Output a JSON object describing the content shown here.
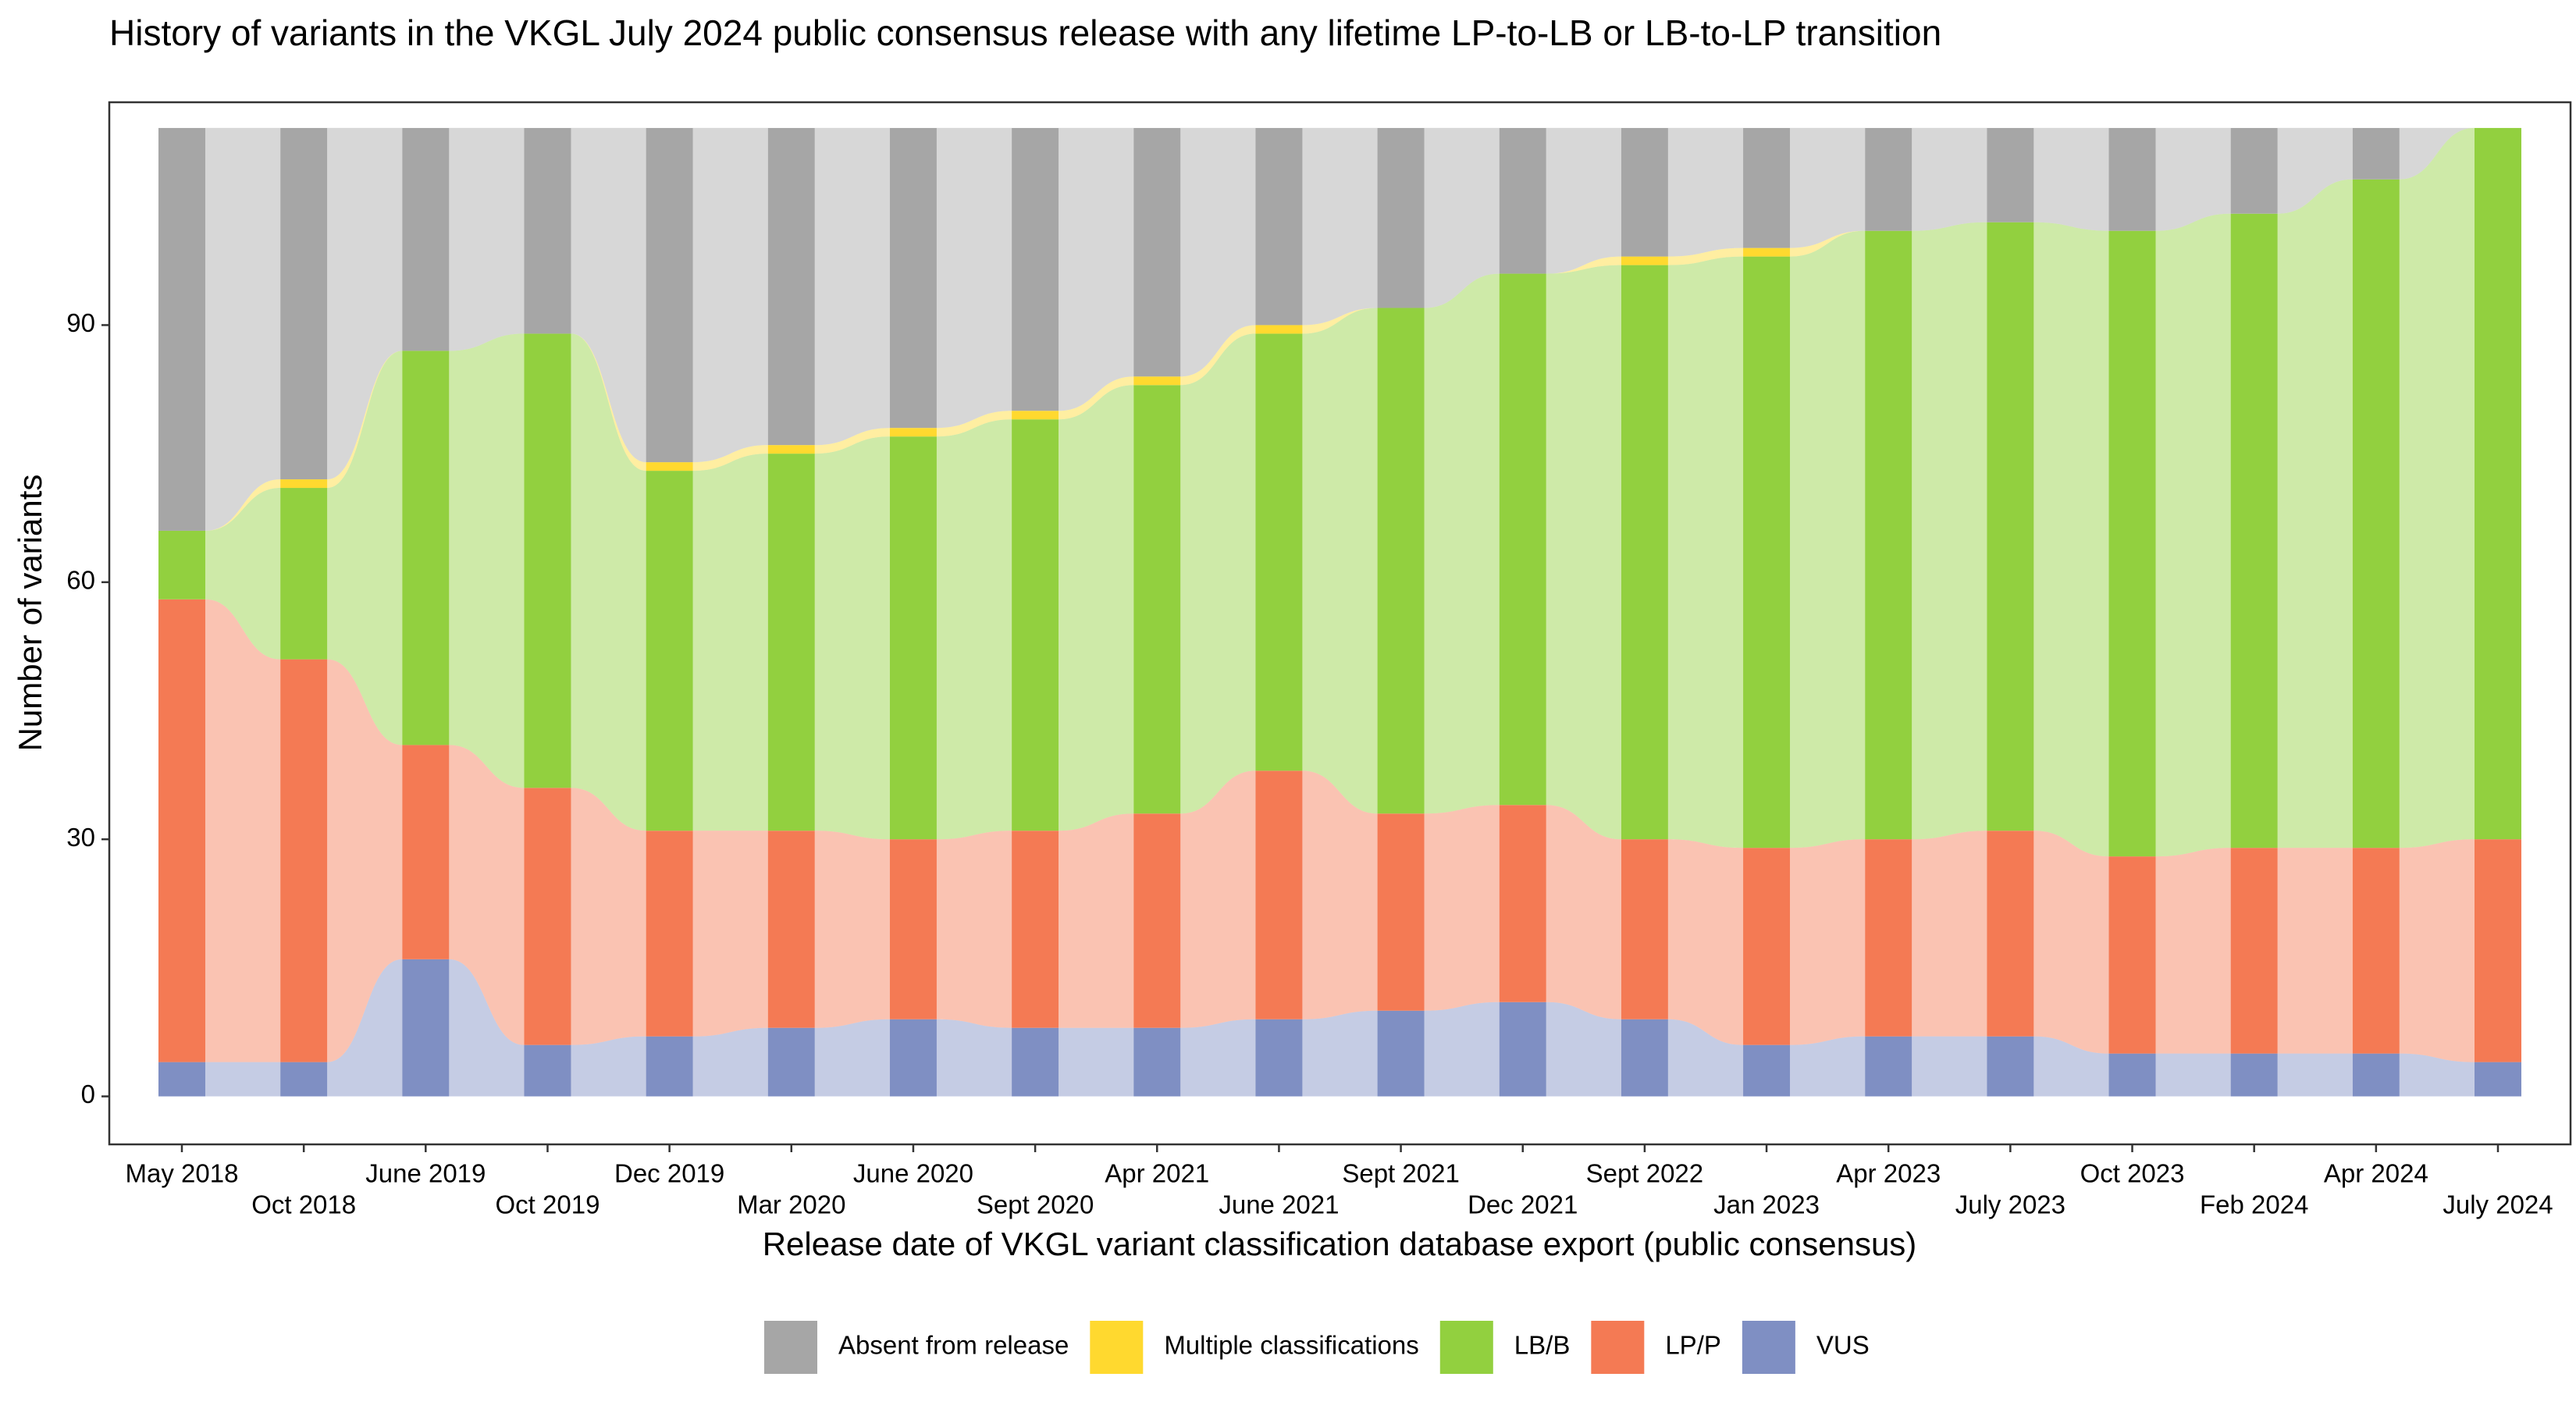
{
  "chart_data": {
    "type": "alluvial",
    "title": "History of variants in the VKGL July 2024 public consensus release with any lifetime LP-to-LB or LB-to-LP transition",
    "x_label": "Release date of VKGL variant classification database export (public consensus)",
    "y_label": "Number of variants",
    "categories": [
      "May 2018",
      "Oct 2018",
      "June 2019",
      "Oct 2019",
      "Dec 2019",
      "Mar 2020",
      "June 2020",
      "Sept 2020",
      "Apr 2021",
      "June 2021",
      "Sept 2021",
      "Dec 2021",
      "Sept 2022",
      "Jan 2023",
      "Apr 2023",
      "July 2023",
      "Oct 2023",
      "Feb 2024",
      "Apr 2024",
      "July 2024"
    ],
    "series": [
      {
        "name": "Absent from release",
        "color": "#a6a6a6",
        "values": [
          47,
          41,
          26,
          24,
          39,
          37,
          35,
          33,
          29,
          23,
          21,
          17,
          15,
          14,
          12,
          11,
          12,
          10,
          6,
          0
        ]
      },
      {
        "name": "Multiple classifications",
        "color": "#ffd92f",
        "values": [
          0,
          1,
          0,
          0,
          1,
          1,
          1,
          1,
          1,
          1,
          0,
          0,
          1,
          1,
          0,
          0,
          0,
          0,
          0,
          0
        ]
      },
      {
        "name": "LB/B",
        "color": "#92d03f",
        "values": [
          8,
          20,
          46,
          53,
          42,
          44,
          47,
          48,
          50,
          51,
          59,
          62,
          67,
          69,
          71,
          71,
          73,
          74,
          78,
          83
        ]
      },
      {
        "name": "LP/P",
        "color": "#f47a54",
        "values": [
          54,
          47,
          25,
          30,
          24,
          23,
          21,
          23,
          25,
          29,
          23,
          23,
          21,
          23,
          23,
          24,
          23,
          24,
          24,
          26
        ]
      },
      {
        "name": "VUS",
        "color": "#7f8fc3",
        "values": [
          4,
          4,
          16,
          6,
          7,
          8,
          9,
          8,
          8,
          9,
          10,
          11,
          9,
          6,
          7,
          7,
          5,
          5,
          5,
          4
        ]
      }
    ],
    "ylim": [
      -5.6,
      116
    ],
    "yticks": [
      0,
      30,
      60,
      90
    ],
    "grid": false,
    "legend_position": "bottom"
  }
}
